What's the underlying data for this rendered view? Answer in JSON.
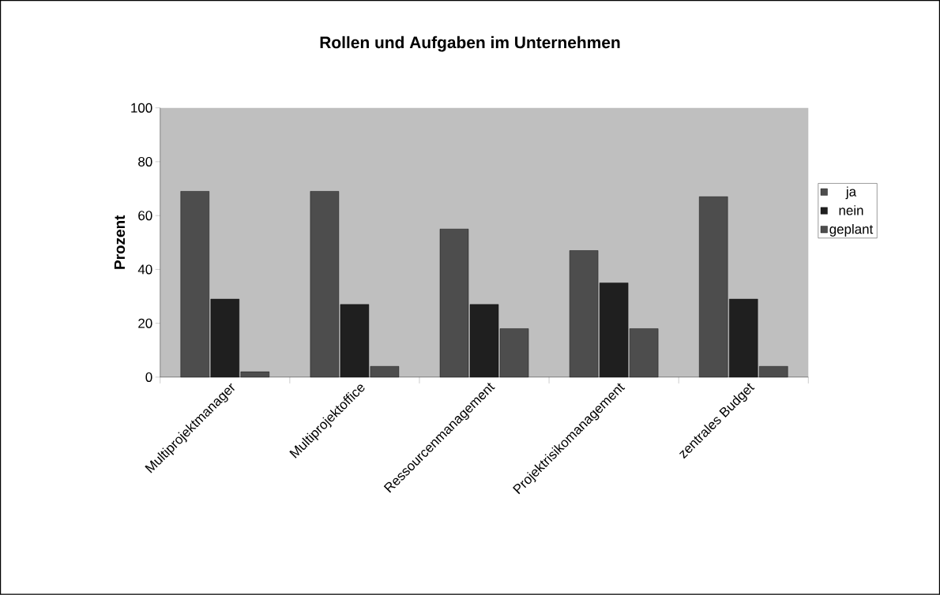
{
  "chart_data": {
    "type": "bar",
    "title": "Rollen und Aufgaben im Unternehmen",
    "ylabel": "Prozent",
    "categories": [
      "Multiprojektmanager",
      "Multiprojektoffice",
      "Ressourcenmanagement",
      "Projektrisikomanagement",
      "zentrales Budget"
    ],
    "series": [
      {
        "name": "ja",
        "color": "#4d4d4d",
        "values": [
          69,
          69,
          55,
          47,
          67
        ]
      },
      {
        "name": "nein",
        "color": "#1f1f1f",
        "values": [
          29,
          27,
          27,
          35,
          29
        ]
      },
      {
        "name": "geplant",
        "color": "#4d4d4d",
        "values": [
          2,
          4,
          18,
          18,
          4
        ]
      }
    ],
    "ylim": [
      0,
      100
    ],
    "yticks": [
      0,
      20,
      40,
      60,
      80,
      100
    ],
    "grid": false,
    "legend": "right"
  }
}
